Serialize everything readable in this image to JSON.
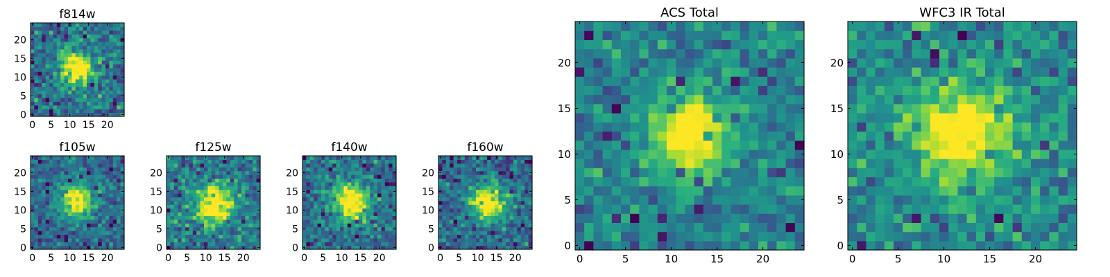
{
  "colormap": "viridis",
  "colors": {
    "viridis_low": "#440154",
    "viridis_mid": "#21918c",
    "viridis_high": "#fde725",
    "axes": "#000000",
    "background": "#ffffff"
  },
  "chart_data": [
    {
      "type": "heatmap",
      "title": "f814w",
      "grid_size": 25,
      "xlim": [
        -0.5,
        24.5
      ],
      "ylim": [
        -0.5,
        24.5
      ],
      "xticks": [
        0,
        5,
        10,
        15,
        20
      ],
      "yticks": [
        0,
        5,
        10,
        15,
        20
      ],
      "source_center": [
        12.0,
        12.5
      ],
      "source_sigma": 3.2,
      "source_peak": 0.95,
      "background_level": 0.38,
      "noise_level": 0.2,
      "seed": 11
    },
    {
      "type": "heatmap",
      "title": "f105w",
      "grid_size": 25,
      "xlim": [
        -0.5,
        24.5
      ],
      "ylim": [
        -0.5,
        24.5
      ],
      "xticks": [
        0,
        5,
        10,
        15,
        20
      ],
      "yticks": [
        0,
        5,
        10,
        15,
        20
      ],
      "source_center": [
        12.0,
        12.5
      ],
      "source_sigma": 3.0,
      "source_peak": 0.95,
      "background_level": 0.36,
      "noise_level": 0.15,
      "seed": 23
    },
    {
      "type": "heatmap",
      "title": "f125w",
      "grid_size": 25,
      "xlim": [
        -0.5,
        24.5
      ],
      "ylim": [
        -0.5,
        24.5
      ],
      "xticks": [
        0,
        5,
        10,
        15,
        20
      ],
      "yticks": [
        0,
        5,
        10,
        15,
        20
      ],
      "source_center": [
        12.5,
        11.5
      ],
      "source_sigma": 3.6,
      "source_peak": 0.95,
      "background_level": 0.42,
      "noise_level": 0.18,
      "seed": 37
    },
    {
      "type": "heatmap",
      "title": "f140w",
      "grid_size": 25,
      "xlim": [
        -0.5,
        24.5
      ],
      "ylim": [
        -0.5,
        24.5
      ],
      "xticks": [
        0,
        5,
        10,
        15,
        20
      ],
      "yticks": [
        0,
        5,
        10,
        15,
        20
      ],
      "source_center": [
        12.5,
        12.0
      ],
      "source_sigma": 3.4,
      "source_peak": 0.95,
      "background_level": 0.38,
      "noise_level": 0.17,
      "seed": 41
    },
    {
      "type": "heatmap",
      "title": "f160w",
      "grid_size": 25,
      "xlim": [
        -0.5,
        24.5
      ],
      "ylim": [
        -0.5,
        24.5
      ],
      "xticks": [
        0,
        5,
        10,
        15,
        20
      ],
      "yticks": [
        0,
        5,
        10,
        15,
        20
      ],
      "source_center": [
        12.5,
        12.0
      ],
      "source_sigma": 3.2,
      "source_peak": 0.95,
      "background_level": 0.36,
      "noise_level": 0.18,
      "seed": 53
    },
    {
      "type": "heatmap",
      "title": "ACS Total",
      "grid_size": 25,
      "xlim": [
        -0.5,
        24.5
      ],
      "ylim": [
        -0.5,
        24.5
      ],
      "xticks": [
        0,
        5,
        10,
        15,
        20
      ],
      "yticks": [
        0,
        5,
        10,
        15,
        20
      ],
      "source_center": [
        12.0,
        12.0
      ],
      "source_sigma": 3.0,
      "source_peak": 0.95,
      "background_level": 0.46,
      "noise_level": 0.15,
      "seed": 67
    },
    {
      "type": "heatmap",
      "title": "WFC3 IR Total",
      "grid_size": 25,
      "xlim": [
        -0.5,
        24.5
      ],
      "ylim": [
        -0.5,
        24.5
      ],
      "xticks": [
        0,
        5,
        10,
        15,
        20
      ],
      "yticks": [
        0,
        5,
        10,
        15,
        20
      ],
      "source_center": [
        12.0,
        12.5
      ],
      "source_sigma": 3.3,
      "source_peak": 0.9,
      "background_level": 0.5,
      "noise_level": 0.16,
      "seed": 79
    }
  ]
}
